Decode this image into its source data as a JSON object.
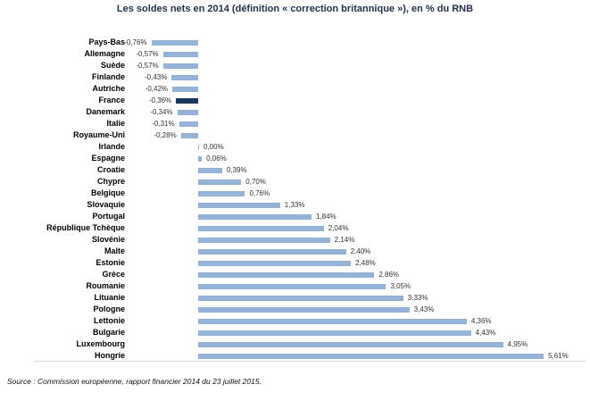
{
  "chart_data": {
    "type": "bar",
    "orientation": "horizontal",
    "title": "Les soldes nets en 2014 (définition « correction britannique »), en % du RNB",
    "source": "Source : Commission européenne, rapport financier 2014 du 23 juillet 2015.",
    "unit": "% du RNB",
    "xlim": [
      -1,
      6.5
    ],
    "grid": false,
    "legend": false,
    "highlight_country": "France",
    "categories": [
      "Pays-Bas",
      "Allemagne",
      "Suède",
      "Finlande",
      "Autriche",
      "France",
      "Danemark",
      "Italie",
      "Royaume-Uni",
      "Irlande",
      "Espagne",
      "Croatie",
      "Chypre",
      "Belgique",
      "Slovaquie",
      "Portugal",
      "République Tchèque",
      "Slovénie",
      "Malte",
      "Estonie",
      "Grèce",
      "Roumanie",
      "Lituanie",
      "Pologne",
      "Lettonie",
      "Bulgarie",
      "Luxembourg",
      "Hongrie"
    ],
    "values": [
      -0.76,
      -0.57,
      -0.57,
      -0.43,
      -0.42,
      -0.36,
      -0.34,
      -0.31,
      -0.28,
      0.0,
      0.06,
      0.39,
      0.7,
      0.76,
      1.33,
      1.84,
      2.04,
      2.14,
      2.4,
      2.48,
      2.86,
      3.05,
      3.33,
      3.43,
      4.36,
      4.43,
      4.95,
      5.61
    ],
    "value_labels": [
      "-0,76%",
      "-0,57%",
      "-0,57%",
      "-0,43%",
      "-0,42%",
      "-0,36%",
      "-0,34%",
      "-0,31%",
      "-0,28%",
      "0,00%",
      "0,06%",
      "0,39%",
      "0,70%",
      "0,76%",
      "1,33%",
      "1,84%",
      "2,04%",
      "2,14%",
      "2,40%",
      "2,48%",
      "2,86%",
      "3,05%",
      "3,33%",
      "3,43%",
      "4,36%",
      "4,43%",
      "4,95%",
      "5,61%"
    ],
    "colors": {
      "bar": "#95B3D7",
      "highlight": "#17375E",
      "axis_line": "#D9D9D9",
      "title_text": "#22304d",
      "category_text": "#000000",
      "value_text": "#333333"
    }
  }
}
